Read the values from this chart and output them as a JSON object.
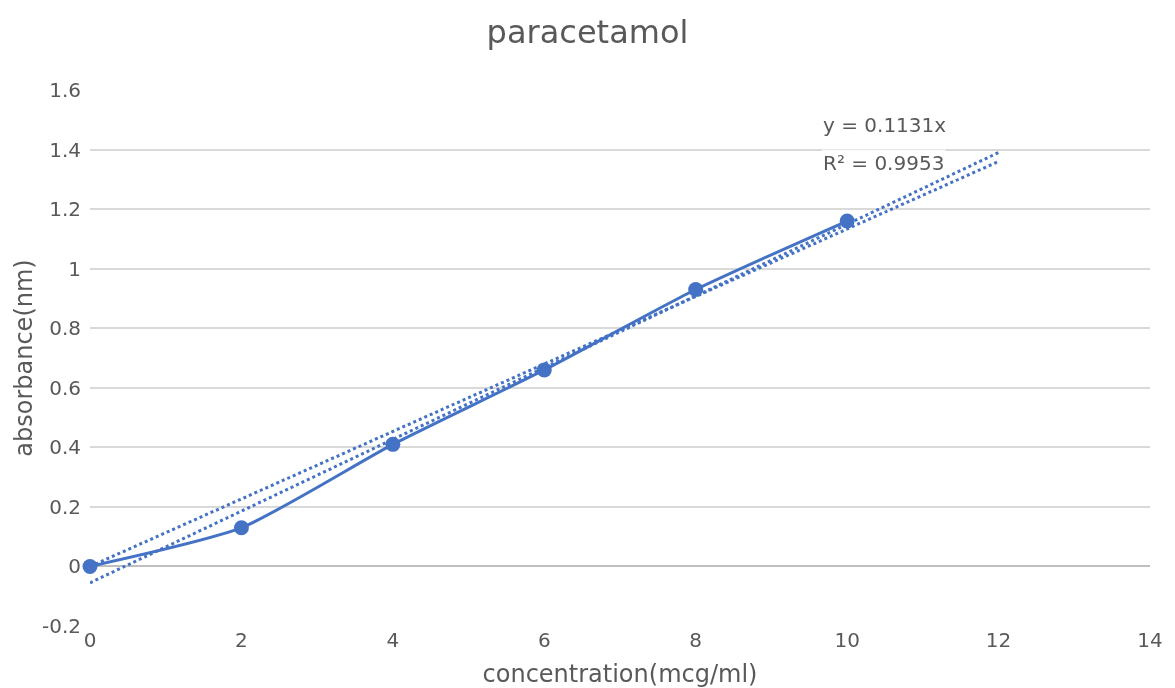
{
  "chart_data": {
    "type": "line",
    "title": "paracetamol",
    "xlabel": "concentration(mcg/ml)",
    "ylabel": "absorbance(nm)",
    "xlim": [
      0,
      14
    ],
    "xticks": [
      0,
      2,
      4,
      6,
      8,
      10,
      12,
      14
    ],
    "ylim": [
      -0.2,
      1.6
    ],
    "yticks": [
      -0.2,
      0,
      0.2,
      0.4,
      0.6,
      0.8,
      1,
      1.2,
      1.4,
      1.6
    ],
    "grid": "y",
    "series": [
      {
        "color": "#4472c4",
        "x": [
          0,
          2,
          4,
          6,
          8,
          10
        ],
        "values": [
          0,
          0.13,
          0.41,
          0.66,
          0.93,
          1.16
        ],
        "marker": "circle",
        "line_style": "solid"
      },
      {
        "color": "#4472c4",
        "x": [
          0,
          12
        ],
        "values": [
          0,
          1.36
        ],
        "marker": "none",
        "line_style": "dotted"
      },
      {
        "color": "#4472c4",
        "x": [
          0,
          12
        ],
        "values": [
          -0.055,
          1.39
        ],
        "marker": "none",
        "line_style": "dotted"
      }
    ],
    "annotations": [
      "y = 0.1131x",
      "R² = 0.9953"
    ]
  }
}
